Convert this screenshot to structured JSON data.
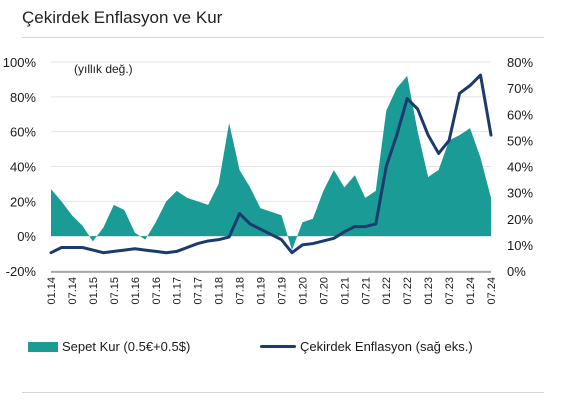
{
  "title": "Çekirdek Enflasyon ve Kur",
  "chart_data": {
    "type": "area",
    "annotation": "(yıllık değ.)",
    "x": [
      "01.14",
      "04.14",
      "07.14",
      "10.14",
      "01.15",
      "04.15",
      "07.15",
      "10.15",
      "01.16",
      "04.16",
      "07.16",
      "10.16",
      "01.17",
      "04.17",
      "07.17",
      "10.17",
      "01.18",
      "04.18",
      "07.18",
      "10.18",
      "01.19",
      "04.19",
      "07.19",
      "10.19",
      "01.20",
      "04.20",
      "07.20",
      "10.20",
      "01.21",
      "04.21",
      "07.21",
      "10.21",
      "01.22",
      "04.22",
      "07.22",
      "10.22",
      "01.23",
      "04.23",
      "07.23",
      "10.23",
      "01.24",
      "04.24",
      "07.24"
    ],
    "x_tick_labels": [
      "01.14",
      "07.14",
      "01.15",
      "07.15",
      "01.16",
      "07.16",
      "01.17",
      "07.17",
      "01.18",
      "07.18",
      "01.19",
      "07.19",
      "01.20",
      "07.20",
      "01.21",
      "07.21",
      "01.22",
      "07.22",
      "01.23",
      "07.23",
      "01.24",
      "07.24"
    ],
    "y_left": {
      "ticks": [
        "-20%",
        "0%",
        "20%",
        "40%",
        "60%",
        "80%",
        "100%"
      ],
      "ylim": [
        -20,
        100
      ]
    },
    "y_right": {
      "ticks": [
        "0%",
        "10%",
        "20%",
        "30%",
        "40%",
        "50%",
        "60%",
        "70%",
        "80%"
      ],
      "ylim": [
        0,
        80
      ]
    },
    "series": [
      {
        "name": "Sepet Kur (0.5€+0.5$)",
        "axis": "left",
        "type": "area",
        "color": "#1a9b96",
        "values": [
          27,
          20,
          12,
          6,
          -3,
          5,
          18,
          15,
          2,
          -2,
          8,
          20,
          26,
          22,
          20,
          18,
          30,
          65,
          38,
          28,
          16,
          14,
          12,
          -8,
          8,
          10,
          26,
          38,
          28,
          35,
          22,
          26,
          72,
          85,
          92,
          60,
          34,
          38,
          55,
          58,
          62,
          45,
          22
        ]
      },
      {
        "name": "Çekirdek Enflasyon (sağ eks.)",
        "axis": "right",
        "type": "line",
        "color": "#1c3a6e",
        "values": [
          7,
          9,
          9,
          9,
          8,
          7,
          7.5,
          8,
          8.5,
          8,
          7.5,
          7,
          7.5,
          9,
          10.5,
          11.5,
          12,
          13,
          22,
          18,
          16,
          14,
          12,
          7,
          10,
          10.5,
          11.5,
          12.5,
          15,
          17,
          17,
          18,
          40,
          52,
          66,
          62,
          52,
          45,
          50,
          68,
          71,
          75,
          52
        ]
      }
    ],
    "legend": "bottom"
  },
  "legend": {
    "item1": "Sepet Kur (0.5€+0.5$)",
    "item2": "Çekirdek Enflasyon (sağ eks.)"
  }
}
